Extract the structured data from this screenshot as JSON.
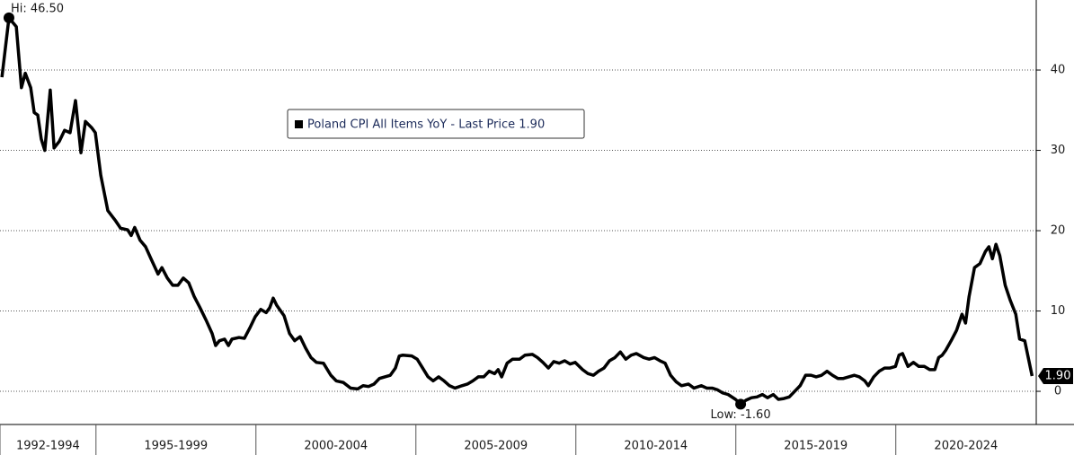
{
  "chart_data": {
    "type": "line",
    "legend": "Poland CPI All Items YoY - Last Price 1.90",
    "series": [
      {
        "name": "Poland CPI All Items YoY",
        "color": "#000000",
        "x": [
          1992.06,
          1992.28,
          1992.51,
          1992.67,
          1992.79,
          1992.96,
          1993.07,
          1993.18,
          1993.29,
          1993.4,
          1993.57,
          1993.69,
          1993.85,
          1994.02,
          1994.19,
          1994.36,
          1994.53,
          1994.67,
          1994.87,
          1994.98,
          1995.15,
          1995.37,
          1995.6,
          1995.77,
          1995.99,
          1996.1,
          1996.21,
          1996.38,
          1996.55,
          1996.72,
          1996.94,
          1997.06,
          1997.23,
          1997.4,
          1997.56,
          1997.73,
          1997.9,
          1998.07,
          1998.24,
          1998.46,
          1998.63,
          1998.74,
          1998.86,
          1999.02,
          1999.14,
          1999.25,
          1999.47,
          1999.64,
          1999.81,
          1999.98,
          2000.15,
          2000.32,
          2000.43,
          2000.54,
          2000.65,
          2000.88,
          2001.05,
          2001.21,
          2001.38,
          2001.55,
          2001.72,
          2001.89,
          2002.11,
          2002.34,
          2002.51,
          2002.73,
          2002.96,
          2003.18,
          2003.35,
          2003.52,
          2003.69,
          2003.86,
          2004.03,
          2004.2,
          2004.36,
          2004.48,
          2004.59,
          2004.87,
          2005.04,
          2005.21,
          2005.38,
          2005.54,
          2005.71,
          2005.88,
          2006.05,
          2006.22,
          2006.44,
          2006.61,
          2006.78,
          2006.95,
          2007.12,
          2007.29,
          2007.46,
          2007.57,
          2007.68,
          2007.85,
          2008.02,
          2008.24,
          2008.41,
          2008.64,
          2008.8,
          2008.97,
          2009.14,
          2009.31,
          2009.48,
          2009.65,
          2009.82,
          2009.98,
          2010.21,
          2010.38,
          2010.55,
          2010.71,
          2010.88,
          2011.05,
          2011.22,
          2011.39,
          2011.56,
          2011.73,
          2011.89,
          2012.12,
          2012.29,
          2012.46,
          2012.63,
          2012.79,
          2012.96,
          2013.13,
          2013.3,
          2013.52,
          2013.69,
          2013.92,
          2014.09,
          2014.26,
          2014.42,
          2014.59,
          2014.76,
          2014.99,
          2015.15,
          2015.32,
          2015.49,
          2015.66,
          2015.83,
          2015.99,
          2016.17,
          2016.33,
          2016.5,
          2016.67,
          2016.84,
          2017.01,
          2017.18,
          2017.35,
          2017.51,
          2017.68,
          2017.85,
          2018.02,
          2018.19,
          2018.36,
          2018.53,
          2018.7,
          2018.86,
          2019.03,
          2019.14,
          2019.31,
          2019.48,
          2019.65,
          2019.82,
          2019.99,
          2020.1,
          2020.21,
          2020.38,
          2020.55,
          2020.72,
          2020.89,
          2021.06,
          2021.22,
          2021.34,
          2021.45,
          2021.56,
          2021.73,
          2021.9,
          2022.07,
          2022.18,
          2022.29,
          2022.46,
          2022.63,
          2022.8,
          2022.91,
          2023.02,
          2023.13,
          2023.25,
          2023.42,
          2023.58,
          2023.75,
          2023.87,
          2024.03,
          2024.15,
          2024.26
        ],
        "values": [
          39.1,
          46.5,
          45.4,
          37.8,
          39.6,
          37.8,
          34.7,
          34.4,
          31.4,
          30.0,
          37.5,
          30.3,
          31.1,
          32.5,
          32.2,
          36.2,
          29.7,
          33.6,
          32.8,
          32.2,
          26.9,
          22.5,
          21.3,
          20.3,
          20.1,
          19.4,
          20.4,
          18.8,
          18.0,
          16.5,
          14.6,
          15.4,
          14.1,
          13.2,
          13.2,
          14.1,
          13.5,
          11.8,
          10.5,
          8.7,
          7.2,
          5.7,
          6.3,
          6.5,
          5.7,
          6.5,
          6.7,
          6.6,
          7.9,
          9.3,
          10.2,
          9.8,
          10.4,
          11.6,
          10.7,
          9.4,
          7.2,
          6.3,
          6.8,
          5.4,
          4.2,
          3.6,
          3.5,
          2.0,
          1.3,
          1.1,
          0.4,
          0.3,
          0.7,
          0.6,
          0.9,
          1.6,
          1.8,
          2.0,
          2.9,
          4.4,
          4.5,
          4.4,
          4.0,
          2.9,
          1.8,
          1.3,
          1.8,
          1.3,
          0.7,
          0.4,
          0.7,
          0.9,
          1.3,
          1.8,
          1.8,
          2.5,
          2.2,
          2.7,
          1.8,
          3.5,
          4.0,
          4.0,
          4.5,
          4.6,
          4.2,
          3.6,
          2.9,
          3.7,
          3.5,
          3.8,
          3.4,
          3.6,
          2.7,
          2.2,
          2.0,
          2.5,
          2.9,
          3.8,
          4.2,
          4.9,
          4.0,
          4.5,
          4.7,
          4.2,
          4.0,
          4.2,
          3.8,
          3.5,
          2.0,
          1.2,
          0.7,
          0.9,
          0.4,
          0.7,
          0.4,
          0.4,
          0.2,
          -0.2,
          -0.4,
          -1.0,
          -1.6,
          -1.1,
          -0.8,
          -0.7,
          -0.4,
          -0.8,
          -0.4,
          -1.0,
          -0.9,
          -0.7,
          0.0,
          0.7,
          2.0,
          2.0,
          1.8,
          2.0,
          2.5,
          2.0,
          1.6,
          1.6,
          1.8,
          2.0,
          1.8,
          1.3,
          0.7,
          1.8,
          2.5,
          2.9,
          2.9,
          3.1,
          4.5,
          4.7,
          3.1,
          3.6,
          3.1,
          3.1,
          2.7,
          2.7,
          4.2,
          4.5,
          5.1,
          6.3,
          7.6,
          9.6,
          8.5,
          11.8,
          15.4,
          15.9,
          17.4,
          18.0,
          16.5,
          18.3,
          16.9,
          13.2,
          11.3,
          9.6,
          6.5,
          6.3,
          4.0,
          1.9
        ]
      }
    ],
    "annotations": [
      {
        "text": "Hi: 46.50",
        "x": 1992.28,
        "y": 46.5
      },
      {
        "text": "Low: -1.60",
        "x": 2015.15,
        "y": -1.6
      }
    ],
    "last_value_label": {
      "value": 1.9,
      "label": "1.90"
    },
    "xlim": [
      1992,
      2024.39
    ],
    "xticks": [
      {
        "value": 1992,
        "label": "1992-1994"
      },
      {
        "value": 1995,
        "label": "1995-1999"
      },
      {
        "value": 2000,
        "label": "2000-2004"
      },
      {
        "value": 2005,
        "label": "2005-2009"
      },
      {
        "value": 2010,
        "label": "2010-2014"
      },
      {
        "value": 2015,
        "label": "2015-2019"
      },
      {
        "value": 2020,
        "label": "2020-2024"
      }
    ],
    "ylim": [
      -4.13,
      48.72
    ],
    "yticks": [
      0,
      10,
      20,
      30,
      40
    ],
    "grid": true
  }
}
